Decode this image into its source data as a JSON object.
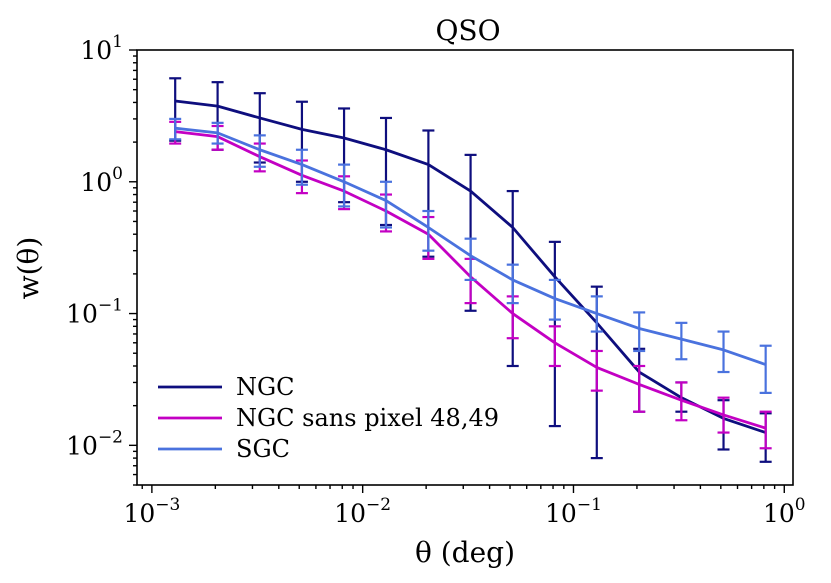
{
  "chart_data": {
    "type": "line",
    "title": "QSO",
    "xlabel": "θ  (deg)",
    "ylabel": "w(θ)",
    "xscale": "log",
    "yscale": "log",
    "xlim": [
      0.00085,
      1.1
    ],
    "ylim": [
      0.005,
      10
    ],
    "x_ticks": [
      {
        "base": "10",
        "exp": "−3",
        "value": 0.001
      },
      {
        "base": "10",
        "exp": "−2",
        "value": 0.01
      },
      {
        "base": "10",
        "exp": "−1",
        "value": 0.1
      },
      {
        "base": "10",
        "exp": "0",
        "value": 1
      }
    ],
    "y_ticks": [
      {
        "base": "10",
        "exp": "−2",
        "value": 0.01
      },
      {
        "base": "10",
        "exp": "−1",
        "value": 0.1
      },
      {
        "base": "10",
        "exp": "0",
        "value": 1
      },
      {
        "base": "10",
        "exp": "1",
        "value": 10
      }
    ],
    "x": [
      0.00129,
      0.00205,
      0.00325,
      0.00515,
      0.00816,
      0.0129,
      0.0205,
      0.0325,
      0.0515,
      0.0816,
      0.129,
      0.205,
      0.325,
      0.515,
      0.816
    ],
    "series": [
      {
        "name": "NGC",
        "color": "#0e0e7e",
        "values": [
          4.1,
          3.75,
          3.05,
          2.5,
          2.15,
          1.75,
          1.35,
          0.85,
          0.45,
          0.19,
          0.085,
          0.036,
          0.023,
          0.016,
          0.0125
        ],
        "lower": [
          2.05,
          1.75,
          1.4,
          1.0,
          0.7,
          0.47,
          0.27,
          0.105,
          0.04,
          0.014,
          0.008,
          0.018,
          0.018,
          0.0093,
          0.0075
        ],
        "upper": [
          6.1,
          5.7,
          4.7,
          4.05,
          3.6,
          3.05,
          2.45,
          1.6,
          0.85,
          0.35,
          0.16,
          0.054,
          0.03,
          0.022,
          0.0175
        ]
      },
      {
        "name": "NGC sans pixel 48,49",
        "color": "#c300c3",
        "values": [
          2.4,
          2.2,
          1.55,
          1.12,
          0.85,
          0.6,
          0.4,
          0.19,
          0.1,
          0.06,
          0.039,
          0.029,
          0.022,
          0.017,
          0.0135
        ],
        "lower": [
          1.95,
          1.75,
          1.2,
          0.82,
          0.62,
          0.42,
          0.26,
          0.12,
          0.065,
          0.04,
          0.026,
          0.018,
          0.0155,
          0.0125,
          0.0095
        ],
        "upper": [
          2.85,
          2.65,
          1.95,
          1.45,
          1.1,
          0.8,
          0.54,
          0.26,
          0.135,
          0.08,
          0.052,
          0.04,
          0.03,
          0.023,
          0.018
        ]
      },
      {
        "name": "SGC",
        "color": "#4a72de",
        "values": [
          2.55,
          2.35,
          1.75,
          1.35,
          1.0,
          0.72,
          0.45,
          0.275,
          0.18,
          0.13,
          0.1,
          0.077,
          0.064,
          0.053,
          0.041
        ],
        "lower": [
          2.1,
          1.95,
          1.3,
          0.95,
          0.65,
          0.45,
          0.3,
          0.18,
          0.12,
          0.09,
          0.073,
          0.052,
          0.045,
          0.036,
          0.025
        ],
        "upper": [
          3.0,
          2.8,
          2.25,
          1.75,
          1.35,
          1.0,
          0.6,
          0.37,
          0.235,
          0.18,
          0.135,
          0.102,
          0.085,
          0.073,
          0.057
        ]
      }
    ],
    "legend": {
      "position": "bottom-left"
    }
  }
}
